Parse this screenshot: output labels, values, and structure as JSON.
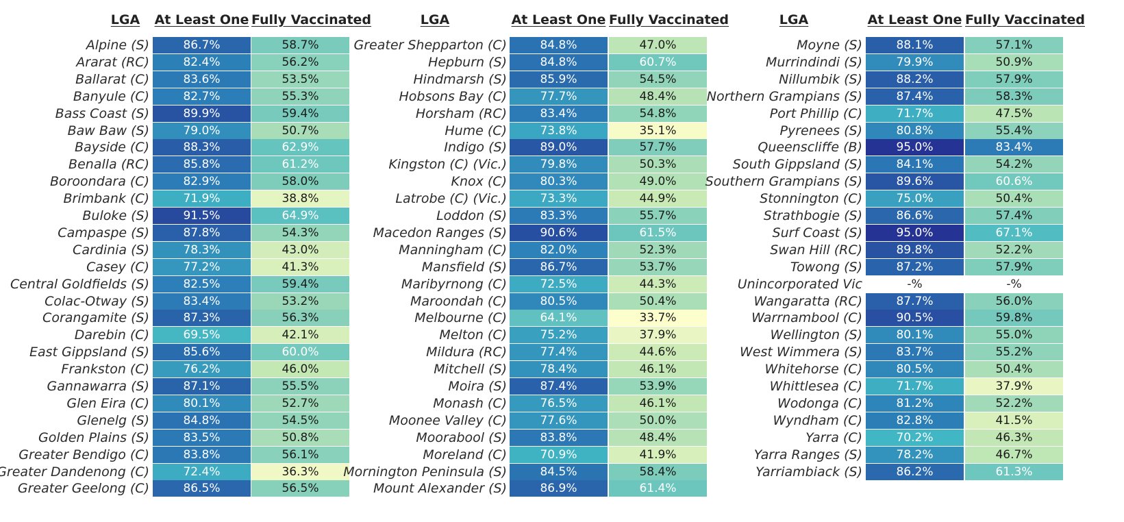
{
  "chart_data": {
    "type": "heatmap",
    "headers": {
      "lga": "LGA",
      "at_least_one": "At Least One",
      "fully_vaccinated": "Fully Vaccinated"
    },
    "color_scale": {
      "low": "#ffffcc",
      "mid": "#41b6c4",
      "high": "#253494"
    },
    "missing_label": "-%",
    "rows": [
      [
        "Alpine (S)",
        "86.7%",
        "58.7%"
      ],
      [
        "Ararat (RC)",
        "82.4%",
        "56.2%"
      ],
      [
        "Ballarat (C)",
        "83.6%",
        "53.5%"
      ],
      [
        "Banyule (C)",
        "82.7%",
        "55.3%"
      ],
      [
        "Bass Coast (S)",
        "89.9%",
        "59.4%"
      ],
      [
        "Baw Baw (S)",
        "79.0%",
        "50.7%"
      ],
      [
        "Bayside (C)",
        "88.3%",
        "62.9%"
      ],
      [
        "Benalla (RC)",
        "85.8%",
        "61.2%"
      ],
      [
        "Boroondara (C)",
        "82.9%",
        "58.0%"
      ],
      [
        "Brimbank (C)",
        "71.9%",
        "38.8%"
      ],
      [
        "Buloke (S)",
        "91.5%",
        "64.9%"
      ],
      [
        "Campaspe (S)",
        "87.8%",
        "54.3%"
      ],
      [
        "Cardinia (S)",
        "78.3%",
        "43.0%"
      ],
      [
        "Casey (C)",
        "77.2%",
        "41.3%"
      ],
      [
        "Central Goldfields (S)",
        "82.5%",
        "59.4%"
      ],
      [
        "Colac-Otway (S)",
        "83.4%",
        "53.2%"
      ],
      [
        "Corangamite (S)",
        "87.3%",
        "56.3%"
      ],
      [
        "Darebin (C)",
        "69.5%",
        "42.1%"
      ],
      [
        "East Gippsland (S)",
        "85.6%",
        "60.0%"
      ],
      [
        "Frankston (C)",
        "76.2%",
        "46.0%"
      ],
      [
        "Gannawarra (S)",
        "87.1%",
        "55.5%"
      ],
      [
        "Glen Eira (C)",
        "80.1%",
        "52.7%"
      ],
      [
        "Glenelg (S)",
        "84.8%",
        "54.5%"
      ],
      [
        "Golden Plains (S)",
        "83.5%",
        "50.8%"
      ],
      [
        "Greater Bendigo (C)",
        "83.8%",
        "56.1%"
      ],
      [
        "Greater Dandenong (C)",
        "72.4%",
        "36.3%"
      ],
      [
        "Greater Geelong (C)",
        "86.5%",
        "56.5%"
      ],
      [
        "Greater Shepparton (C)",
        "84.8%",
        "47.0%"
      ],
      [
        "Hepburn (S)",
        "84.8%",
        "60.7%"
      ],
      [
        "Hindmarsh (S)",
        "85.9%",
        "54.5%"
      ],
      [
        "Hobsons Bay (C)",
        "77.7%",
        "48.4%"
      ],
      [
        "Horsham (RC)",
        "83.4%",
        "54.8%"
      ],
      [
        "Hume (C)",
        "73.8%",
        "35.1%"
      ],
      [
        "Indigo (S)",
        "89.0%",
        "57.7%"
      ],
      [
        "Kingston (C) (Vic.)",
        "79.8%",
        "50.3%"
      ],
      [
        "Knox (C)",
        "80.3%",
        "49.0%"
      ],
      [
        "Latrobe (C) (Vic.)",
        "73.3%",
        "44.9%"
      ],
      [
        "Loddon (S)",
        "83.3%",
        "55.7%"
      ],
      [
        "Macedon Ranges (S)",
        "90.6%",
        "61.5%"
      ],
      [
        "Manningham (C)",
        "82.0%",
        "52.3%"
      ],
      [
        "Mansfield (S)",
        "86.7%",
        "53.7%"
      ],
      [
        "Maribyrnong (C)",
        "72.5%",
        "44.3%"
      ],
      [
        "Maroondah (C)",
        "80.5%",
        "50.4%"
      ],
      [
        "Melbourne (C)",
        "64.1%",
        "33.7%"
      ],
      [
        "Melton (C)",
        "75.2%",
        "37.9%"
      ],
      [
        "Mildura (RC)",
        "77.4%",
        "44.6%"
      ],
      [
        "Mitchell (S)",
        "78.4%",
        "46.1%"
      ],
      [
        "Moira (S)",
        "87.4%",
        "53.9%"
      ],
      [
        "Monash (C)",
        "76.5%",
        "46.1%"
      ],
      [
        "Moonee Valley (C)",
        "77.6%",
        "50.0%"
      ],
      [
        "Moorabool (S)",
        "83.8%",
        "48.4%"
      ],
      [
        "Moreland (C)",
        "70.9%",
        "41.9%"
      ],
      [
        "Mornington Peninsula (S)",
        "84.5%",
        "58.4%"
      ],
      [
        "Mount Alexander (S)",
        "86.9%",
        "61.4%"
      ],
      [
        "Moyne (S)",
        "88.1%",
        "57.1%"
      ],
      [
        "Murrindindi (S)",
        "79.9%",
        "50.9%"
      ],
      [
        "Nillumbik (S)",
        "88.2%",
        "57.9%"
      ],
      [
        "Northern Grampians (S)",
        "87.4%",
        "58.3%"
      ],
      [
        "Port Phillip (C)",
        "71.7%",
        "47.5%"
      ],
      [
        "Pyrenees (S)",
        "80.8%",
        "55.4%"
      ],
      [
        "Queenscliffe (B)",
        "95.0%",
        "83.4%"
      ],
      [
        "South Gippsland (S)",
        "84.1%",
        "54.2%"
      ],
      [
        "Southern Grampians (S)",
        "89.6%",
        "60.6%"
      ],
      [
        "Stonnington (C)",
        "75.0%",
        "50.4%"
      ],
      [
        "Strathbogie (S)",
        "86.6%",
        "57.4%"
      ],
      [
        "Surf Coast (S)",
        "95.0%",
        "67.1%"
      ],
      [
        "Swan Hill (RC)",
        "89.8%",
        "52.2%"
      ],
      [
        "Towong (S)",
        "87.2%",
        "57.9%"
      ],
      [
        "Unincorporated Vic",
        "-%",
        "-%"
      ],
      [
        "Wangaratta (RC)",
        "87.7%",
        "56.0%"
      ],
      [
        "Warrnambool (C)",
        "90.5%",
        "59.8%"
      ],
      [
        "Wellington (S)",
        "80.1%",
        "55.0%"
      ],
      [
        "West Wimmera (S)",
        "83.7%",
        "55.2%"
      ],
      [
        "Whitehorse (C)",
        "80.5%",
        "50.4%"
      ],
      [
        "Whittlesea (C)",
        "71.7%",
        "37.9%"
      ],
      [
        "Wodonga (C)",
        "81.2%",
        "52.2%"
      ],
      [
        "Wyndham (C)",
        "82.8%",
        "41.5%"
      ],
      [
        "Yarra (C)",
        "70.2%",
        "46.3%"
      ],
      [
        "Yarra Ranges (S)",
        "78.2%",
        "46.7%"
      ],
      [
        "Yarriambiack (S)",
        "86.2%",
        "61.3%"
      ]
    ]
  }
}
